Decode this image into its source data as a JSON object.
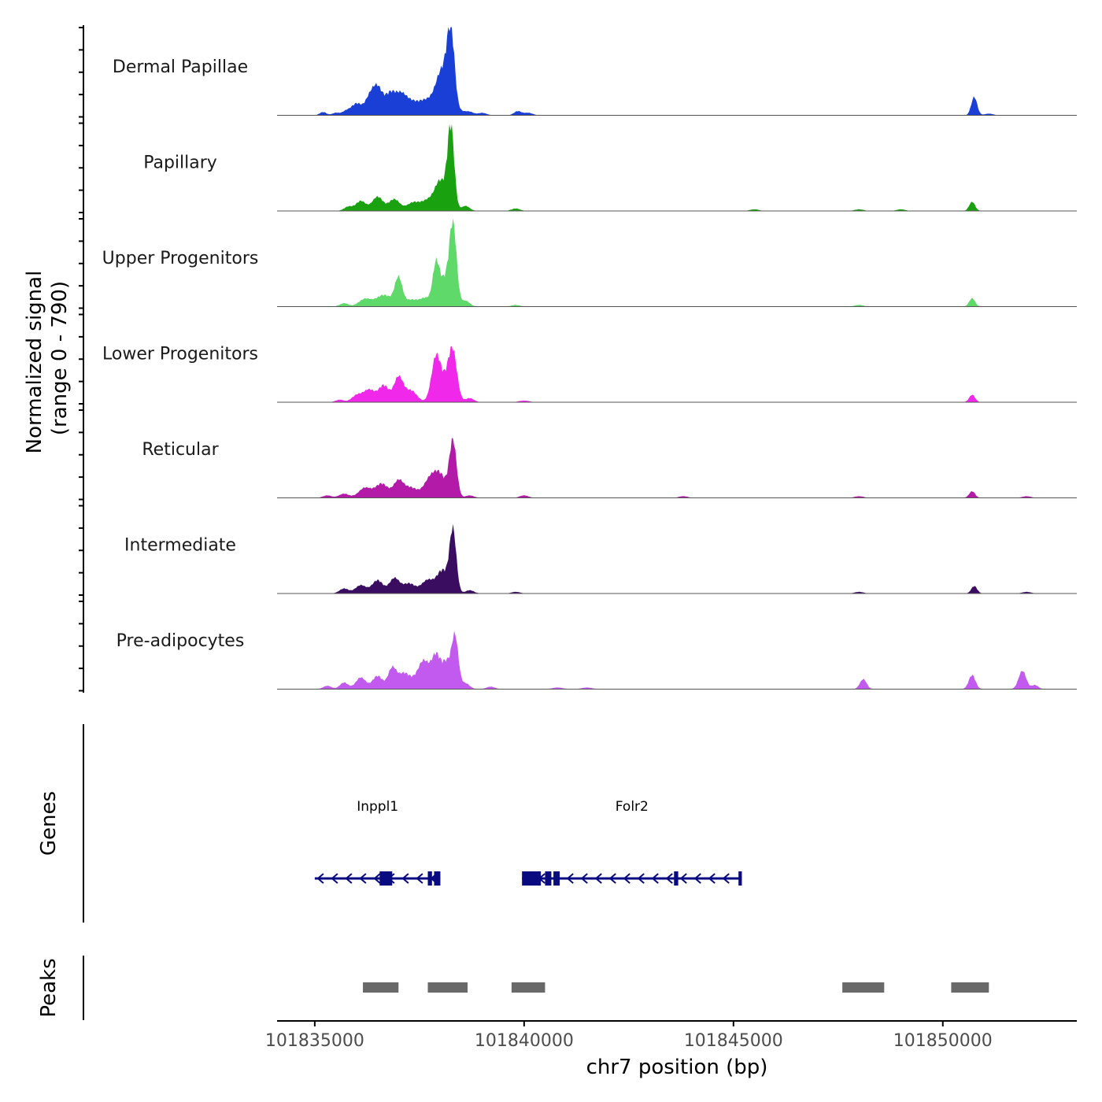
{
  "chart_data": {
    "type": "area",
    "title": "",
    "xlabel": "chr7 position (bp)",
    "ylabel_line1": "Normalized signal",
    "ylabel_line2": "(range 0 - 790)",
    "y_range": [
      0,
      790
    ],
    "xlim": [
      101834100,
      101853200
    ],
    "x_ticks": [
      101835000,
      101840000,
      101845000,
      101850000
    ],
    "x_tick_labels": [
      "101835000",
      "101840000",
      "101845000",
      "101850000"
    ],
    "grid": false,
    "legend": "none",
    "colors": {
      "dermal_papillae": "#1a3fd6",
      "papillary": "#1aa10f",
      "upper_progenitors": "#5ed96a",
      "lower_progenitors": "#f028ea",
      "reticular": "#b31aa8",
      "intermediate": "#3a0d60",
      "pre_adipocytes": "#c35af0",
      "genes": "#0a0a80",
      "peaks": "#696969"
    },
    "tracks": [
      {
        "name": "Dermal Papillae",
        "color": "#1a3fd6",
        "peaks": [
          [
            101835200,
            4,
            80
          ],
          [
            101835500,
            3,
            80
          ],
          [
            101835750,
            5,
            100
          ],
          [
            101836000,
            14,
            120
          ],
          [
            101836300,
            18,
            110
          ],
          [
            101836500,
            32,
            120
          ],
          [
            101836800,
            24,
            120
          ],
          [
            101837050,
            22,
            130
          ],
          [
            101837300,
            14,
            150
          ],
          [
            101837600,
            14,
            150
          ],
          [
            101837900,
            18,
            160
          ],
          [
            101838050,
            40,
            130
          ],
          [
            101838250,
            98,
            90
          ],
          [
            101838500,
            4,
            100
          ],
          [
            101838700,
            4,
            100
          ],
          [
            101839000,
            3,
            100
          ],
          [
            101839850,
            5,
            90
          ],
          [
            101840100,
            3,
            100
          ],
          [
            101850750,
            22,
            70
          ],
          [
            101851100,
            2,
            100
          ]
        ]
      },
      {
        "name": "Papillary",
        "color": "#1aa10f",
        "peaks": [
          [
            101835800,
            5,
            100
          ],
          [
            101836100,
            12,
            120
          ],
          [
            101836500,
            17,
            130
          ],
          [
            101836900,
            14,
            130
          ],
          [
            101837350,
            10,
            150
          ],
          [
            101837700,
            12,
            150
          ],
          [
            101838000,
            35,
            130
          ],
          [
            101838250,
            100,
            80
          ],
          [
            101838600,
            6,
            100
          ],
          [
            101839800,
            3,
            100
          ],
          [
            101845500,
            2,
            100
          ],
          [
            101848000,
            2,
            100
          ],
          [
            101849000,
            2,
            100
          ],
          [
            101850700,
            11,
            70
          ]
        ]
      },
      {
        "name": "Upper Progenitors",
        "color": "#5ed96a",
        "peaks": [
          [
            101835700,
            4,
            100
          ],
          [
            101836200,
            9,
            150
          ],
          [
            101836650,
            14,
            180
          ],
          [
            101837000,
            33,
            90
          ],
          [
            101837300,
            8,
            150
          ],
          [
            101837650,
            10,
            140
          ],
          [
            101837900,
            50,
            80
          ],
          [
            101838100,
            30,
            100
          ],
          [
            101838300,
            100,
            85
          ],
          [
            101838600,
            7,
            100
          ],
          [
            101839800,
            2,
            100
          ],
          [
            101848000,
            2,
            100
          ],
          [
            101850700,
            10,
            70
          ]
        ]
      },
      {
        "name": "Lower Progenitors",
        "color": "#f028ea",
        "peaks": [
          [
            101835600,
            3,
            100
          ],
          [
            101836000,
            8,
            120
          ],
          [
            101836300,
            15,
            140
          ],
          [
            101836650,
            20,
            120
          ],
          [
            101837000,
            30,
            110
          ],
          [
            101837300,
            14,
            140
          ],
          [
            101837900,
            55,
            110
          ],
          [
            101838150,
            22,
            120
          ],
          [
            101838300,
            55,
            100
          ],
          [
            101838700,
            5,
            100
          ],
          [
            101840000,
            2,
            120
          ],
          [
            101850700,
            9,
            70
          ]
        ]
      },
      {
        "name": "Reticular",
        "color": "#b31aa8",
        "peaks": [
          [
            101835300,
            3,
            100
          ],
          [
            101835700,
            5,
            120
          ],
          [
            101836200,
            12,
            150
          ],
          [
            101836600,
            17,
            150
          ],
          [
            101837000,
            20,
            120
          ],
          [
            101837300,
            12,
            150
          ],
          [
            101837750,
            22,
            150
          ],
          [
            101838000,
            25,
            140
          ],
          [
            101838300,
            68,
            85
          ],
          [
            101838700,
            3,
            100
          ],
          [
            101840000,
            3,
            100
          ],
          [
            101843800,
            2,
            100
          ],
          [
            101848000,
            2,
            100
          ],
          [
            101850700,
            8,
            70
          ],
          [
            101852000,
            2,
            100
          ]
        ]
      },
      {
        "name": "Intermediate",
        "color": "#3a0d60",
        "peaks": [
          [
            101835700,
            6,
            110
          ],
          [
            101836100,
            10,
            130
          ],
          [
            101836500,
            16,
            130
          ],
          [
            101836900,
            18,
            120
          ],
          [
            101837250,
            12,
            150
          ],
          [
            101837700,
            16,
            150
          ],
          [
            101838050,
            27,
            130
          ],
          [
            101838300,
            75,
            80
          ],
          [
            101838700,
            4,
            100
          ],
          [
            101839800,
            2,
            100
          ],
          [
            101848000,
            2,
            100
          ],
          [
            101850750,
            9,
            70
          ],
          [
            101852000,
            2,
            100
          ]
        ]
      },
      {
        "name": "Pre-adipocytes",
        "color": "#c35af0",
        "peaks": [
          [
            101835300,
            4,
            100
          ],
          [
            101835700,
            8,
            100
          ],
          [
            101836100,
            14,
            120
          ],
          [
            101836500,
            16,
            120
          ],
          [
            101836850,
            25,
            100
          ],
          [
            101837100,
            15,
            120
          ],
          [
            101837300,
            10,
            140
          ],
          [
            101837600,
            33,
            130
          ],
          [
            101837900,
            40,
            110
          ],
          [
            101838150,
            30,
            100
          ],
          [
            101838350,
            62,
            80
          ],
          [
            101838600,
            7,
            100
          ],
          [
            101839200,
            3,
            100
          ],
          [
            101840800,
            2,
            120
          ],
          [
            101841500,
            2,
            120
          ],
          [
            101848100,
            12,
            80
          ],
          [
            101850700,
            17,
            80
          ],
          [
            101851900,
            22,
            90
          ],
          [
            101852200,
            5,
            80
          ]
        ]
      }
    ],
    "genes": [
      {
        "name": "Inppl1",
        "strand": "-",
        "start": 101835000,
        "end": 101838000,
        "exons": [
          [
            101836550,
            101836850
          ],
          [
            101837700,
            101837800
          ],
          [
            101837850,
            101838000
          ]
        ]
      },
      {
        "name": "Folr2",
        "strand": "-",
        "start": 101839950,
        "end": 101845200,
        "exons": [
          [
            101839950,
            101840400
          ],
          [
            101840500,
            101840650
          ],
          [
            101840700,
            101840850
          ],
          [
            101843580,
            101843680
          ],
          [
            101845120,
            101845200
          ]
        ]
      }
    ],
    "peaks": [
      [
        101836150,
        101837000
      ],
      [
        101837700,
        101838650
      ],
      [
        101839700,
        101840500
      ],
      [
        101847600,
        101848600
      ],
      [
        101850200,
        101851100
      ]
    ],
    "panel_labels": {
      "genes": "Genes",
      "peaks": "Peaks"
    }
  }
}
